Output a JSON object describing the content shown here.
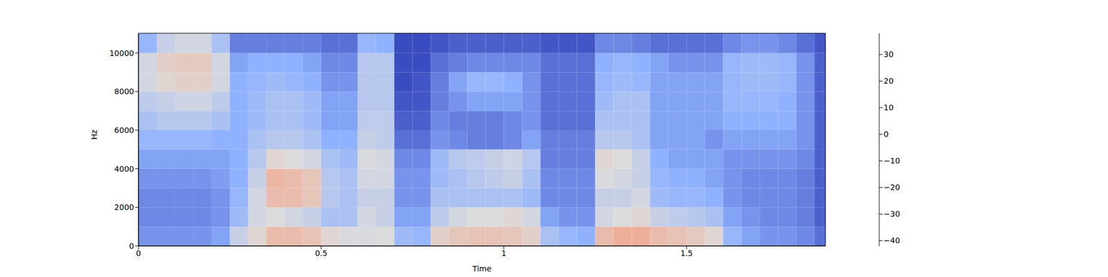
{
  "chart_data": {
    "type": "heatmap",
    "x_label": "Time",
    "y_label": "Hz",
    "xlim": [
      0,
      1.88
    ],
    "xticks": [
      0,
      0.5,
      1,
      1.5
    ],
    "ylim": [
      0,
      11025
    ],
    "yticks": [
      0,
      2000,
      4000,
      6000,
      8000,
      10000
    ],
    "x_bins": [
      0,
      0.05,
      0.1,
      0.15,
      0.2,
      0.25,
      0.3,
      0.35,
      0.4,
      0.45,
      0.5,
      0.55,
      0.6,
      0.65,
      0.7,
      0.75,
      0.8,
      0.85,
      0.9,
      0.95,
      1,
      1.05,
      1.1,
      1.15,
      1.2,
      1.25,
      1.3,
      1.35,
      1.4,
      1.45,
      1.5,
      1.55,
      1.6,
      1.65,
      1.7,
      1.75,
      1.8,
      1.85,
      1.88
    ],
    "y_bins": [
      0,
      1000,
      2000,
      3000,
      4000,
      5000,
      6000,
      7000,
      8000,
      9000,
      10000,
      11025
    ],
    "cells": [
      [
        -28,
        -28,
        -28,
        -28,
        -25,
        -8,
        0,
        8,
        8,
        6,
        0,
        -3,
        -3,
        -2,
        -18,
        -20,
        2,
        5,
        6,
        6,
        5,
        2,
        -15,
        -20,
        -22,
        8,
        12,
        12,
        8,
        6,
        4,
        0,
        -20,
        -25,
        -28,
        -28,
        -30,
        -35
      ],
      [
        -30,
        -30,
        -30,
        -30,
        -28,
        -18,
        -5,
        -2,
        -5,
        -8,
        -15,
        -15,
        -5,
        -8,
        -25,
        -25,
        -10,
        -5,
        -2,
        -2,
        0,
        -5,
        -25,
        -28,
        -28,
        -5,
        -2,
        0,
        -8,
        -10,
        -12,
        -15,
        -25,
        -28,
        -30,
        -30,
        -32,
        -38
      ],
      [
        -30,
        -30,
        -30,
        -30,
        -28,
        -20,
        -5,
        8,
        8,
        5,
        -12,
        -15,
        -8,
        -8,
        -28,
        -28,
        -15,
        -15,
        -15,
        -15,
        -15,
        -18,
        -30,
        -30,
        -30,
        -8,
        -8,
        -5,
        -18,
        -20,
        -20,
        -22,
        -28,
        -30,
        -30,
        -30,
        -32,
        -38
      ],
      [
        -28,
        -28,
        -28,
        -28,
        -26,
        -22,
        -8,
        10,
        8,
        5,
        -12,
        -15,
        -5,
        -5,
        -28,
        -28,
        -18,
        -15,
        -12,
        -10,
        -8,
        -15,
        -30,
        -30,
        -30,
        -3,
        -5,
        -8,
        -20,
        -22,
        -22,
        -25,
        -28,
        -30,
        -30,
        -30,
        -32,
        -38
      ],
      [
        -25,
        -25,
        -25,
        -25,
        -25,
        -22,
        -12,
        0,
        -2,
        -5,
        -15,
        -18,
        -3,
        -5,
        -30,
        -30,
        -18,
        -12,
        -10,
        -8,
        -6,
        -12,
        -32,
        -32,
        -32,
        0,
        -2,
        -8,
        -22,
        -25,
        -25,
        -25,
        -28,
        -28,
        -28,
        -28,
        -30,
        -38
      ],
      [
        -20,
        -20,
        -20,
        -20,
        -22,
        -22,
        -15,
        -12,
        -12,
        -15,
        -22,
        -22,
        -8,
        -10,
        -35,
        -35,
        -28,
        -30,
        -32,
        -32,
        -30,
        -25,
        -32,
        -32,
        -32,
        -12,
        -12,
        -15,
        -25,
        -25,
        -25,
        -28,
        -25,
        -25,
        -25,
        -25,
        -28,
        -38
      ],
      [
        -15,
        -12,
        -12,
        -12,
        -15,
        -22,
        -18,
        -15,
        -15,
        -18,
        -25,
        -25,
        -10,
        -10,
        -38,
        -38,
        -30,
        -32,
        -32,
        -32,
        -30,
        -28,
        -35,
        -35,
        -35,
        -15,
        -15,
        -15,
        -25,
        -25,
        -25,
        -25,
        -22,
        -22,
        -22,
        -22,
        -28,
        -38
      ],
      [
        -10,
        -8,
        -6,
        -6,
        -10,
        -22,
        -18,
        -15,
        -15,
        -18,
        -25,
        -25,
        -12,
        -12,
        -40,
        -40,
        -32,
        -28,
        -25,
        -25,
        -25,
        -28,
        -35,
        -35,
        -35,
        -18,
        -15,
        -15,
        -25,
        -25,
        -25,
        -25,
        -20,
        -20,
        -20,
        -22,
        -28,
        -38
      ],
      [
        -5,
        0,
        2,
        2,
        -5,
        -22,
        -20,
        -18,
        -20,
        -22,
        -28,
        -28,
        -12,
        -12,
        -42,
        -40,
        -32,
        -25,
        -20,
        -20,
        -22,
        -28,
        -35,
        -35,
        -35,
        -20,
        -18,
        -20,
        -25,
        -25,
        -25,
        -25,
        -20,
        -18,
        -18,
        -20,
        -28,
        -38
      ],
      [
        -5,
        2,
        4,
        4,
        -5,
        -25,
        -22,
        -22,
        -22,
        -25,
        -30,
        -30,
        -12,
        -12,
        -42,
        -42,
        -35,
        -32,
        -30,
        -30,
        -30,
        -30,
        -35,
        -35,
        -35,
        -22,
        -20,
        -22,
        -25,
        -28,
        -28,
        -28,
        -20,
        -18,
        -18,
        -20,
        -28,
        -38
      ],
      [
        -20,
        -8,
        -5,
        -5,
        -15,
        -32,
        -32,
        -32,
        -32,
        -32,
        -35,
        -35,
        -20,
        -22,
        -42,
        -42,
        -40,
        -38,
        -38,
        -38,
        -38,
        -38,
        -40,
        -40,
        -40,
        -30,
        -30,
        -32,
        -35,
        -35,
        -35,
        -35,
        -30,
        -28,
        -28,
        -30,
        -35,
        -40
      ]
    ],
    "colorbar": {
      "range": [
        -42,
        38
      ],
      "ticks": [
        {
          "value": -40,
          "label": "−40"
        },
        {
          "value": -30,
          "label": "−30"
        },
        {
          "value": -20,
          "label": "−20"
        },
        {
          "value": -10,
          "label": "−10"
        },
        0,
        10,
        20,
        30
      ]
    }
  }
}
